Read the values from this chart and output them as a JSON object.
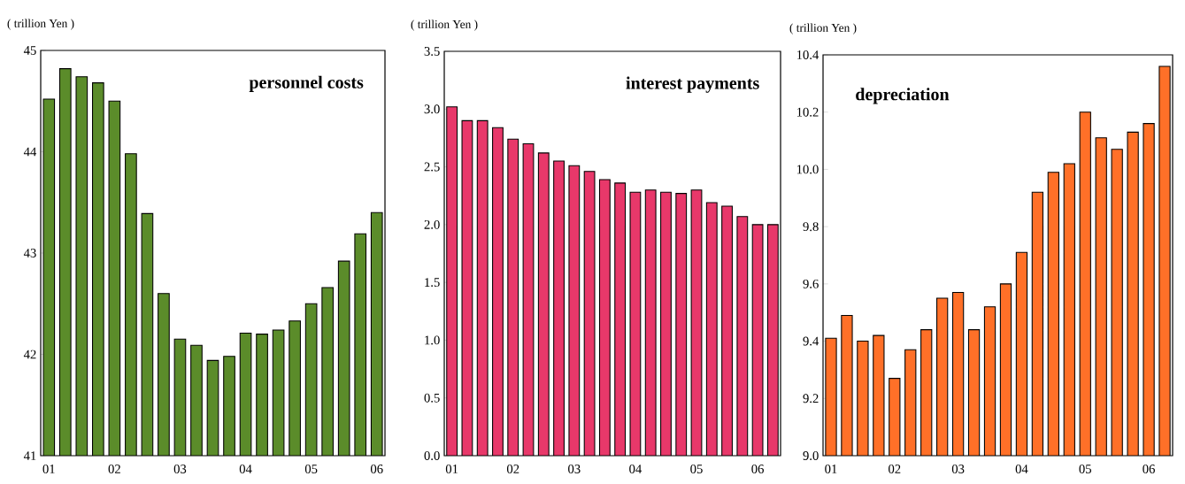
{
  "chart_data": [
    {
      "type": "bar",
      "title": "personnel costs",
      "ylabel": "( trillion Yen )",
      "categories": [
        "01",
        null,
        null,
        null,
        "02",
        null,
        null,
        null,
        "03",
        null,
        null,
        null,
        "04",
        null,
        null,
        null,
        "05",
        null,
        null,
        null,
        "06"
      ],
      "values": [
        44.52,
        44.82,
        44.74,
        44.68,
        44.5,
        43.98,
        43.39,
        42.6,
        42.15,
        42.09,
        41.94,
        41.98,
        42.21,
        42.2,
        42.24,
        42.33,
        42.5,
        42.66,
        42.92,
        43.19,
        43.4
      ],
      "color": "#5b8c2a",
      "ylim": [
        41,
        45
      ],
      "yticks": [
        41,
        42,
        43,
        44,
        45
      ]
    },
    {
      "type": "bar",
      "title": "interest payments",
      "ylabel": "( trillion Yen )",
      "categories": [
        "01",
        null,
        null,
        null,
        "02",
        null,
        null,
        null,
        "03",
        null,
        null,
        null,
        "04",
        null,
        null,
        null,
        "05",
        null,
        null,
        null,
        "06",
        null
      ],
      "values": [
        3.02,
        2.9,
        2.9,
        2.84,
        2.74,
        2.7,
        2.62,
        2.55,
        2.51,
        2.46,
        2.39,
        2.36,
        2.28,
        2.3,
        2.28,
        2.27,
        2.3,
        2.19,
        2.16,
        2.07,
        2.0,
        2.0
      ],
      "color": "#e8386a",
      "ylim": [
        0,
        3.5
      ],
      "yticks": [
        {
          "value": 0,
          "label": "0.0"
        },
        0.5,
        {
          "value": 1,
          "label": "1.0"
        },
        1.5,
        {
          "value": 2,
          "label": "2.0"
        },
        2.5,
        {
          "value": 3,
          "label": "3.0"
        },
        3.5
      ]
    },
    {
      "type": "bar",
      "title": "depreciation",
      "ylabel": "( trillion Yen )",
      "categories": [
        "01",
        null,
        null,
        null,
        "02",
        null,
        null,
        null,
        "03",
        null,
        null,
        null,
        "04",
        null,
        null,
        null,
        "05",
        null,
        null,
        null,
        "06",
        null
      ],
      "values": [
        9.41,
        9.49,
        9.4,
        9.42,
        9.27,
        9.37,
        9.44,
        9.55,
        9.57,
        9.44,
        9.52,
        9.6,
        9.71,
        9.92,
        9.99,
        10.02,
        10.2,
        10.11,
        10.07,
        10.13,
        10.16,
        10.36
      ],
      "color": "#ff7028",
      "ylim": [
        9.0,
        10.4
      ],
      "yticks": [
        {
          "value": 9,
          "label": "9.0"
        },
        9.2,
        9.4,
        9.6,
        9.8,
        {
          "value": 10,
          "label": "10.0"
        },
        10.2,
        10.4
      ]
    }
  ]
}
